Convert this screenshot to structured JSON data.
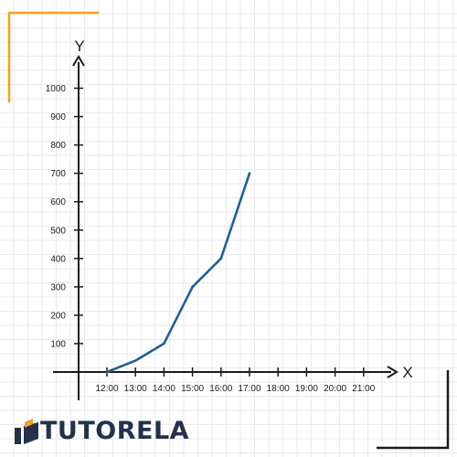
{
  "chart_data": {
    "type": "line",
    "x": [
      "12:00",
      "13:00",
      "14:00",
      "15:00",
      "16:00",
      "17:00"
    ],
    "y": [
      0,
      40,
      100,
      300,
      400,
      700
    ],
    "x_ticks": [
      "12:00",
      "13:00",
      "14:00",
      "15:00",
      "16:00",
      "17:00",
      "18:00",
      "19:00",
      "20:00",
      "21:00"
    ],
    "y_ticks": [
      100,
      200,
      300,
      400,
      500,
      600,
      700,
      800,
      900,
      1000
    ],
    "xlabel": "X",
    "ylabel": "Y",
    "ylim": [
      0,
      1000
    ],
    "grid": true,
    "legend": "none",
    "colors": {
      "line": "#1f5f9e",
      "axis": "#1a1a1a",
      "corner_orange": "#f4a21b",
      "brand": "#23324a"
    }
  },
  "brand": {
    "name": "TUTORELA"
  }
}
